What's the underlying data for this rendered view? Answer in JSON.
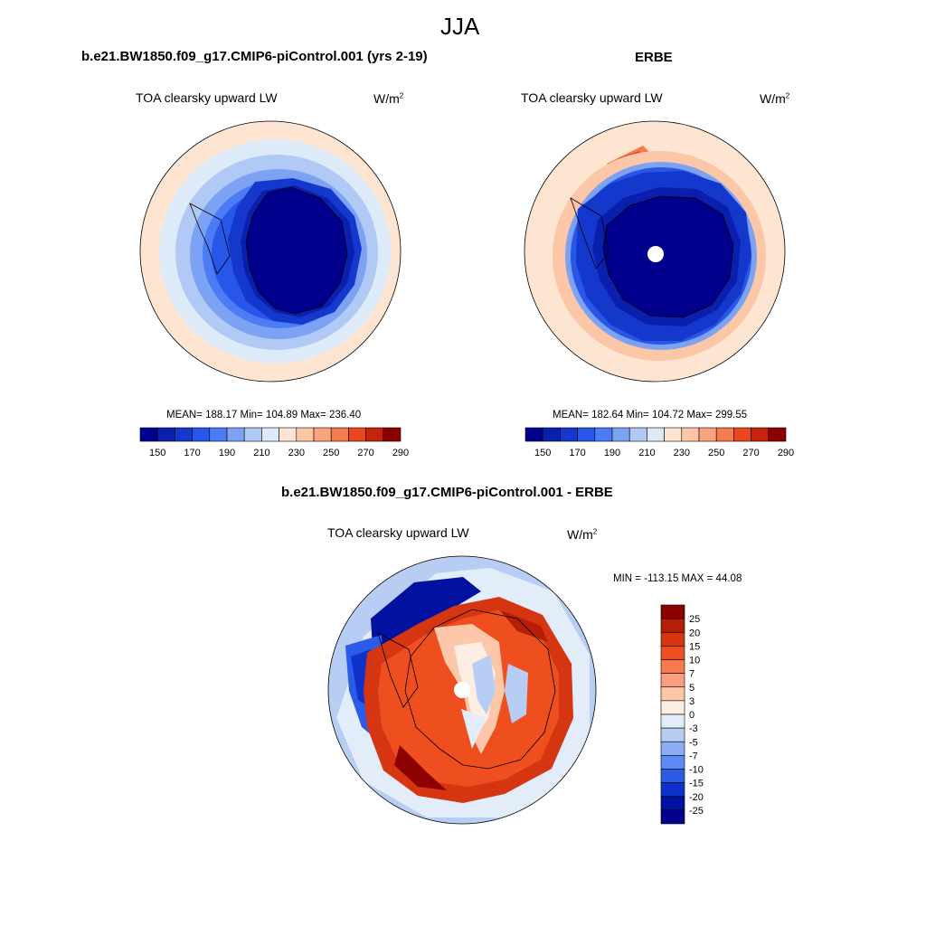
{
  "page": {
    "season": "JJA",
    "titles": {
      "left": "b.e21.BW1850.f09_g17.CMIP6-piControl.001 (yrs 2-19)",
      "right": "ERBE",
      "diff": "b.e21.BW1850.f09_g17.CMIP6-piControl.001 - ERBE"
    }
  },
  "panels": {
    "left": {
      "variable": "TOA clearsky upward LW",
      "unit_base": "W/m",
      "unit_exp": "2",
      "stats": "MEAN= 188.17  Min= 104.89  Max= 236.40",
      "mean": 188.17,
      "min": 104.89,
      "max": 236.4
    },
    "right": {
      "variable": "TOA clearsky upward LW",
      "unit_base": "W/m",
      "unit_exp": "2",
      "stats": "MEAN= 182.64  Min= 104.72  Max= 299.55",
      "mean": 182.64,
      "min": 104.72,
      "max": 299.55
    },
    "diff": {
      "variable": "TOA clearsky upward LW",
      "unit_base": "W/m",
      "unit_exp": "2",
      "stats": "MIN = -113.15 MAX =  44.08",
      "min": -113.15,
      "max": 44.08
    }
  },
  "colorbars": {
    "abs": {
      "colors": [
        "#00008c",
        "#0a1fae",
        "#1538cc",
        "#2756e8",
        "#4b7cf5",
        "#7da2f4",
        "#b0c9f5",
        "#ddeaf8",
        "#fde5d2",
        "#fbc7a6",
        "#f8a47c",
        "#f47a50",
        "#e9481f",
        "#c42310",
        "#8c0000"
      ],
      "labels": [
        "150",
        "170",
        "190",
        "210",
        "230",
        "250",
        "270",
        "290"
      ]
    },
    "diff": {
      "colors": [
        "#8c0000",
        "#b51f08",
        "#d63512",
        "#ef4f1f",
        "#f77a4e",
        "#fb9f7e",
        "#fdc8aa",
        "#fdeee3",
        "#e3edf9",
        "#b7cdf3",
        "#8badf3",
        "#5d89f2",
        "#2c5be8",
        "#0f33c9",
        "#00129f",
        "#00008c"
      ],
      "labels": [
        "25",
        "20",
        "15",
        "10",
        "7",
        "5",
        "3",
        "0",
        "-3",
        "-5",
        "-7",
        "-10",
        "-15",
        "-20",
        "-25"
      ]
    }
  }
}
